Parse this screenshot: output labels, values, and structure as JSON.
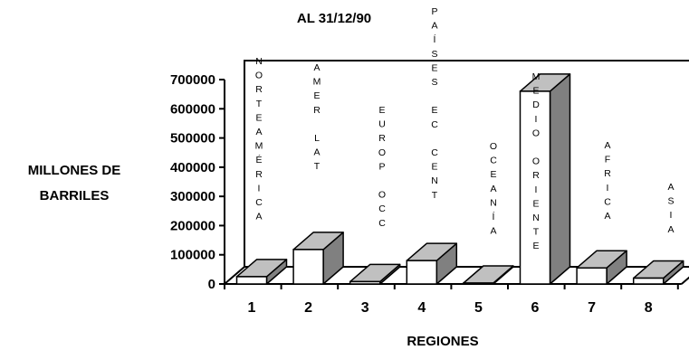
{
  "chart_data": {
    "type": "bar",
    "title": "AL 31/12/90",
    "xlabel": "REGIONES",
    "ylabel": "MILLONES DE BARRILES",
    "ylabel_lines": [
      "MILLONES DE",
      "BARRILES"
    ],
    "categories": [
      "1",
      "2",
      "3",
      "4",
      "5",
      "6",
      "7",
      "8"
    ],
    "region_names": [
      [
        "N",
        "O",
        "R",
        "T",
        "E",
        "A",
        "M",
        "É",
        "R",
        "I",
        "C",
        "A"
      ],
      [
        "A",
        "M",
        "E",
        "R",
        "",
        "L",
        "A",
        "T"
      ],
      [
        "E",
        "U",
        "R",
        "O",
        "P",
        "",
        "O",
        "C",
        "C"
      ],
      [
        "P",
        "A",
        "Í",
        "S",
        "E",
        "S",
        "",
        "E",
        "C",
        "",
        "C",
        "E",
        "N",
        "T"
      ],
      [
        "O",
        "C",
        "E",
        "A",
        "N",
        "Í",
        "A"
      ],
      [
        "M",
        "E",
        "D",
        "I",
        "O",
        "",
        "O",
        "R",
        "I",
        "E",
        "N",
        "T",
        "E"
      ],
      [
        "A",
        "F",
        "R",
        "I",
        "C",
        "A"
      ],
      [
        "A",
        "S",
        "I",
        "A"
      ]
    ],
    "values": [
      25000,
      118000,
      8000,
      80000,
      1000,
      660000,
      55000,
      20000
    ],
    "highlight_index": 5,
    "ylim": [
      0,
      700000
    ],
    "yticks": [
      "0",
      "100000",
      "200000",
      "300000",
      "400000",
      "500000",
      "600000",
      "700000"
    ],
    "colors": {
      "bar_front": "#ffffff",
      "bar_top": "#c0c0c0",
      "bar_side": "#808080",
      "highlight_front": "#ffffff",
      "highlight_top": "#c0c0c0",
      "highlight_side": "#808080",
      "axis": "#000000"
    }
  }
}
